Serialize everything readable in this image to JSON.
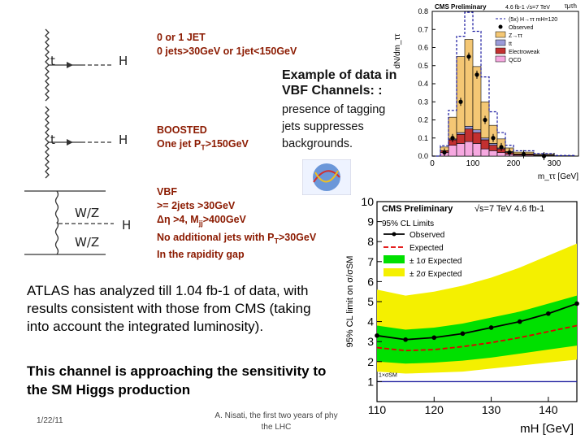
{
  "slide": {
    "diagrams": {
      "ggf1": {
        "in": "t",
        "out": "H"
      },
      "ggf2": {
        "in": "t",
        "out": "H"
      },
      "vbf": {
        "in1": "W/Z",
        "in2": "W/Z",
        "out": "H"
      }
    },
    "categories": {
      "zero_one_jet": {
        "line1": "0 or 1 JET",
        "line2": "0 jets>30GeV or 1jet<150GeV"
      },
      "boosted": {
        "line1": "BOOSTED",
        "line2": "One jet P",
        "sub": "T",
        "line2b": ">150GeV"
      },
      "vbf": {
        "line1": "VBF",
        "line2": ">= 2jets >30GeV",
        "line3a": "Δη >4, M",
        "line3sub": "jj",
        "line3b": ">400GeV",
        "line4a": "No additional jets with P",
        "line4sub": "T",
        "line4b": ">30GeV",
        "line5": "In the rapidity gap"
      }
    },
    "example_caption": {
      "line1": "Example of data in",
      "line2": "VBF Channels: :"
    },
    "tagging_note": [
      "presence of tagging",
      "jets suppresses",
      "backgrounds."
    ],
    "atlas_text": [
      "ATLAS has analyzed till 1.04 fb-1 of data, with",
      "results consistent with those from CMS (taking",
      "into account the integrated luminosity)."
    ],
    "sensitivity_text": [
      "This channel is approaching the sensitivity to",
      "the SM Higgs production"
    ],
    "footer": {
      "date": "1/22/11",
      "credit_line1": "A. Nisati, the first two years of phy",
      "credit_line2": "the LHC"
    }
  },
  "chart_data": [
    {
      "type": "bar",
      "title": "CMS Preliminary",
      "lumi": "4.6 fb-1 √s=7 TeV",
      "channel": "τμτh",
      "ylabel": "dN/dm_ττ",
      "xlabel": "m_ττ [GeV]",
      "xlim": [
        0,
        360
      ],
      "ylim": [
        0,
        0.8
      ],
      "xticks": [
        "0",
        "100",
        "200",
        "300"
      ],
      "yticks": [
        "0.0",
        "0.1",
        "0.2",
        "0.3",
        "0.4",
        "0.5",
        "0.6",
        "0.7",
        "0.8"
      ],
      "legend": [
        "(5x) H→ττ mH=120",
        "Observed",
        "Z→ττ",
        "tt",
        "Electroweak",
        "QCD"
      ],
      "bin_edges": [
        0,
        20,
        40,
        60,
        80,
        100,
        120,
        140,
        160,
        180,
        200,
        250,
        300,
        350
      ],
      "series": [
        {
          "name": "QCD",
          "color": "#f6a8e0",
          "values": [
            0,
            0.02,
            0.06,
            0.07,
            0.08,
            0.07,
            0.04,
            0.03,
            0.02,
            0.01,
            0.005,
            0.003,
            0.001
          ]
        },
        {
          "name": "Electroweak",
          "color": "#c23030",
          "values": [
            0,
            0.01,
            0.03,
            0.05,
            0.07,
            0.06,
            0.05,
            0.03,
            0.02,
            0.01,
            0.005,
            0.002,
            0.001
          ]
        },
        {
          "name": "tt",
          "color": "#9a9ad8",
          "values": [
            0,
            0,
            0.005,
            0.01,
            0.015,
            0.015,
            0.01,
            0.01,
            0.005,
            0.005,
            0.002,
            0.001,
            0
          ]
        },
        {
          "name": "Z→ττ",
          "color": "#f4c774",
          "values": [
            0,
            0.02,
            0.12,
            0.42,
            0.48,
            0.35,
            0.2,
            0.1,
            0.05,
            0.02,
            0.01,
            0.005,
            0
          ]
        }
      ],
      "signal": {
        "name": "(5x) H→ττ",
        "values": [
          0,
          0.03,
          0.15,
          0.45,
          0.6,
          0.78,
          0.55,
          0.3,
          0.14,
          0.06,
          0.03,
          0.01,
          0.005
        ]
      },
      "observed": {
        "x": [
          30,
          50,
          70,
          90,
          110,
          130,
          150,
          170,
          190,
          225,
          275
        ],
        "y": [
          0.02,
          0.1,
          0.3,
          0.55,
          0.45,
          0.2,
          0.1,
          0.05,
          0.02,
          0.01,
          0.0
        ]
      }
    },
    {
      "type": "line",
      "title": "CMS Preliminary",
      "lumi": "√s=7 TeV 4.6 fb-1",
      "ylabel": "95% CL limit on σ/σSM",
      "xlabel": "mH [GeV]",
      "xlim": [
        110,
        145
      ],
      "ylim": [
        0,
        10
      ],
      "xticks": [
        "110",
        "120",
        "130",
        "140"
      ],
      "yticks": [
        "0",
        "1",
        "2",
        "3",
        "4",
        "5",
        "6",
        "7",
        "8",
        "9",
        "10"
      ],
      "legend_title": "95% CL Limits",
      "legend": [
        "Observed",
        "Expected",
        "± 1σ Expected",
        "± 2σ Expected"
      ],
      "sm_label": "1×σSM",
      "x": [
        110,
        115,
        120,
        125,
        130,
        135,
        140,
        145
      ],
      "observed": [
        3.3,
        3.1,
        3.2,
        3.4,
        3.7,
        4.0,
        4.4,
        4.9
      ],
      "expected": [
        2.7,
        2.55,
        2.6,
        2.75,
        2.95,
        3.2,
        3.5,
        3.8
      ],
      "band1_lo": [
        2.0,
        1.9,
        1.95,
        2.05,
        2.2,
        2.4,
        2.6,
        2.8
      ],
      "band1_hi": [
        3.8,
        3.6,
        3.7,
        3.9,
        4.2,
        4.5,
        4.9,
        5.3
      ],
      "band2_lo": [
        1.5,
        1.4,
        1.45,
        1.5,
        1.65,
        1.8,
        1.95,
        2.1
      ],
      "band2_hi": [
        5.6,
        5.3,
        5.5,
        5.8,
        6.2,
        6.7,
        7.3,
        7.9
      ],
      "sm_line": 1
    }
  ]
}
